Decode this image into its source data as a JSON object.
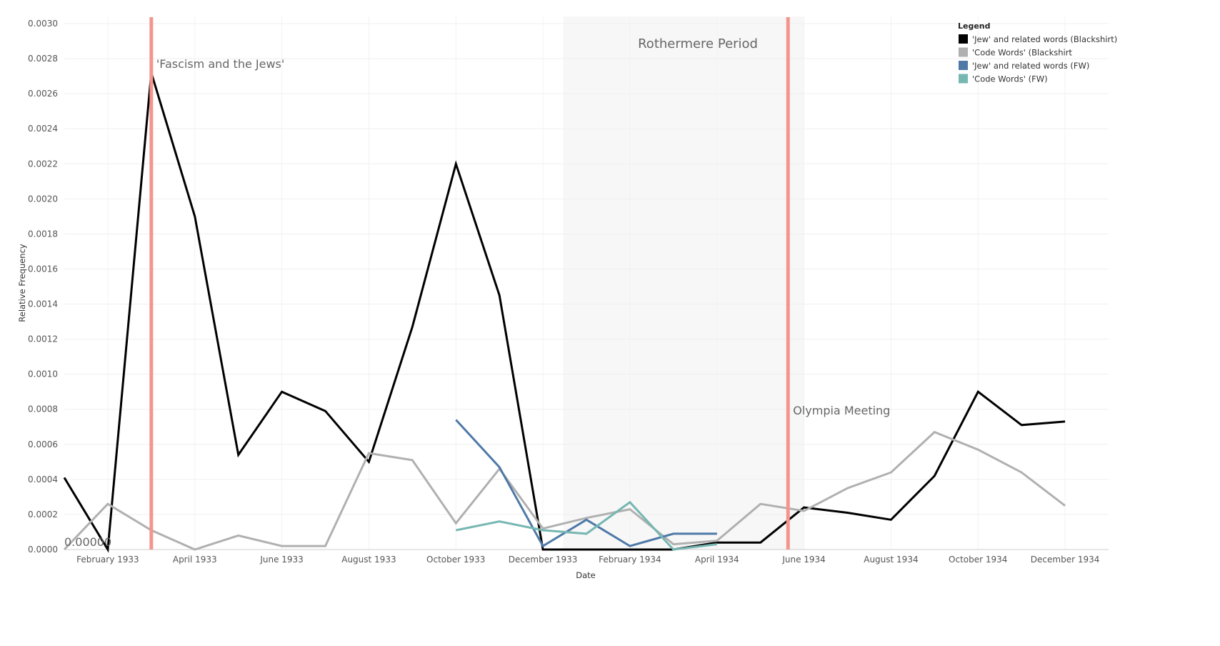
{
  "chart_data": {
    "type": "line",
    "xlabel": "Date",
    "ylabel": "Relative Frequency",
    "ylim": [
      0,
      0.003
    ],
    "y_ticks": [
      "0.0000",
      "0.0002",
      "0.0004",
      "0.0006",
      "0.0008",
      "0.0010",
      "0.0012",
      "0.0014",
      "0.0016",
      "0.0018",
      "0.0020",
      "0.0022",
      "0.0024",
      "0.0026",
      "0.0028",
      "0.0030"
    ],
    "x_ticks": [
      {
        "date": "1933-02",
        "label": "February 1933"
      },
      {
        "date": "1933-04",
        "label": "April 1933"
      },
      {
        "date": "1933-06",
        "label": "June 1933"
      },
      {
        "date": "1933-08",
        "label": "August 1933"
      },
      {
        "date": "1933-10",
        "label": "October 1933"
      },
      {
        "date": "1933-12",
        "label": "December 1933"
      },
      {
        "date": "1934-02",
        "label": "February 1934"
      },
      {
        "date": "1934-04",
        "label": "April 1934"
      },
      {
        "date": "1934-06",
        "label": "June 1934"
      },
      {
        "date": "1934-08",
        "label": "August 1934"
      },
      {
        "date": "1934-10",
        "label": "October 1934"
      },
      {
        "date": "1934-12",
        "label": "December 1934"
      }
    ],
    "x_range": [
      "1933-01",
      "1935-01"
    ],
    "grid": true,
    "legend": {
      "title": "Legend",
      "position": "top-right"
    },
    "series": [
      {
        "name": "'Jew' and related words (Blackshirt)",
        "color": "#000000",
        "points": [
          [
            "1933-01",
            0.00041
          ],
          [
            "1933-02",
            0.0
          ],
          [
            "1933-03",
            0.00272
          ],
          [
            "1933-04",
            0.0019
          ],
          [
            "1933-05",
            0.00054
          ],
          [
            "1933-06",
            0.0009
          ],
          [
            "1933-07",
            0.00079
          ],
          [
            "1933-08",
            0.0005
          ],
          [
            "1933-09",
            0.00127
          ],
          [
            "1933-10",
            0.0022
          ],
          [
            "1933-11",
            0.00145
          ],
          [
            "1933-12",
            0.0
          ],
          [
            "1934-01",
            0.0
          ],
          [
            "1934-02",
            0.0
          ],
          [
            "1934-03",
            0.0
          ],
          [
            "1934-04",
            4e-05
          ],
          [
            "1934-05",
            4e-05
          ],
          [
            "1934-06",
            0.00024
          ],
          [
            "1934-07",
            0.00021
          ],
          [
            "1934-08",
            0.00017
          ],
          [
            "1934-09",
            0.00042
          ],
          [
            "1934-10",
            0.0009
          ],
          [
            "1934-11",
            0.00071
          ],
          [
            "1934-12",
            0.00073
          ]
        ]
      },
      {
        "name": "'Code Words' (Blackshirt",
        "color": "#b0b0b0",
        "points": [
          [
            "1933-01",
            0.0
          ],
          [
            "1933-02",
            0.00026
          ],
          [
            "1933-03",
            0.00011
          ],
          [
            "1933-04",
            0.0
          ],
          [
            "1933-05",
            8e-05
          ],
          [
            "1933-06",
            2e-05
          ],
          [
            "1933-07",
            2e-05
          ],
          [
            "1933-08",
            0.00055
          ],
          [
            "1933-09",
            0.00051
          ],
          [
            "1933-10",
            0.00015
          ],
          [
            "1933-11",
            0.00046
          ],
          [
            "1933-12",
            0.00012
          ],
          [
            "1934-01",
            0.00018
          ],
          [
            "1934-02",
            0.00023
          ],
          [
            "1934-03",
            3e-05
          ],
          [
            "1934-04",
            5e-05
          ],
          [
            "1934-05",
            0.00026
          ],
          [
            "1934-06",
            0.00022
          ],
          [
            "1934-07",
            0.00035
          ],
          [
            "1934-08",
            0.00044
          ],
          [
            "1934-09",
            0.00067
          ],
          [
            "1934-10",
            0.00057
          ],
          [
            "1934-11",
            0.00044
          ],
          [
            "1934-12",
            0.00025
          ]
        ]
      },
      {
        "name": "'Jew' and related words (FW)",
        "color": "#4e79a7",
        "points": [
          [
            "1933-10",
            0.00074
          ],
          [
            "1933-11",
            0.00047
          ],
          [
            "1933-12",
            2e-05
          ],
          [
            "1934-01",
            0.00017
          ],
          [
            "1934-02",
            2e-05
          ],
          [
            "1934-03",
            9e-05
          ],
          [
            "1934-04",
            9e-05
          ]
        ]
      },
      {
        "name": "'Code Words' (FW)",
        "color": "#76b7b2",
        "points": [
          [
            "1933-10",
            0.00011
          ],
          [
            "1933-11",
            0.00016
          ],
          [
            "1933-12",
            0.00011
          ],
          [
            "1934-01",
            9e-05
          ],
          [
            "1934-02",
            0.00027
          ],
          [
            "1934-03",
            0.0
          ],
          [
            "1934-04",
            3e-05
          ]
        ]
      }
    ],
    "annotations": {
      "lines": [
        {
          "date": "1933-03",
          "label": "'Fascism and the Jews'",
          "color": "#f4948f"
        },
        {
          "date": "1934-05-20",
          "label": "Olympia Meeting",
          "color": "#f4948f"
        }
      ],
      "band": {
        "from": "1933-12-15",
        "to": "1934-06-01",
        "label": "Rothermere Period",
        "color": "#f7f7f7"
      },
      "zero_label": "0.00000"
    }
  }
}
